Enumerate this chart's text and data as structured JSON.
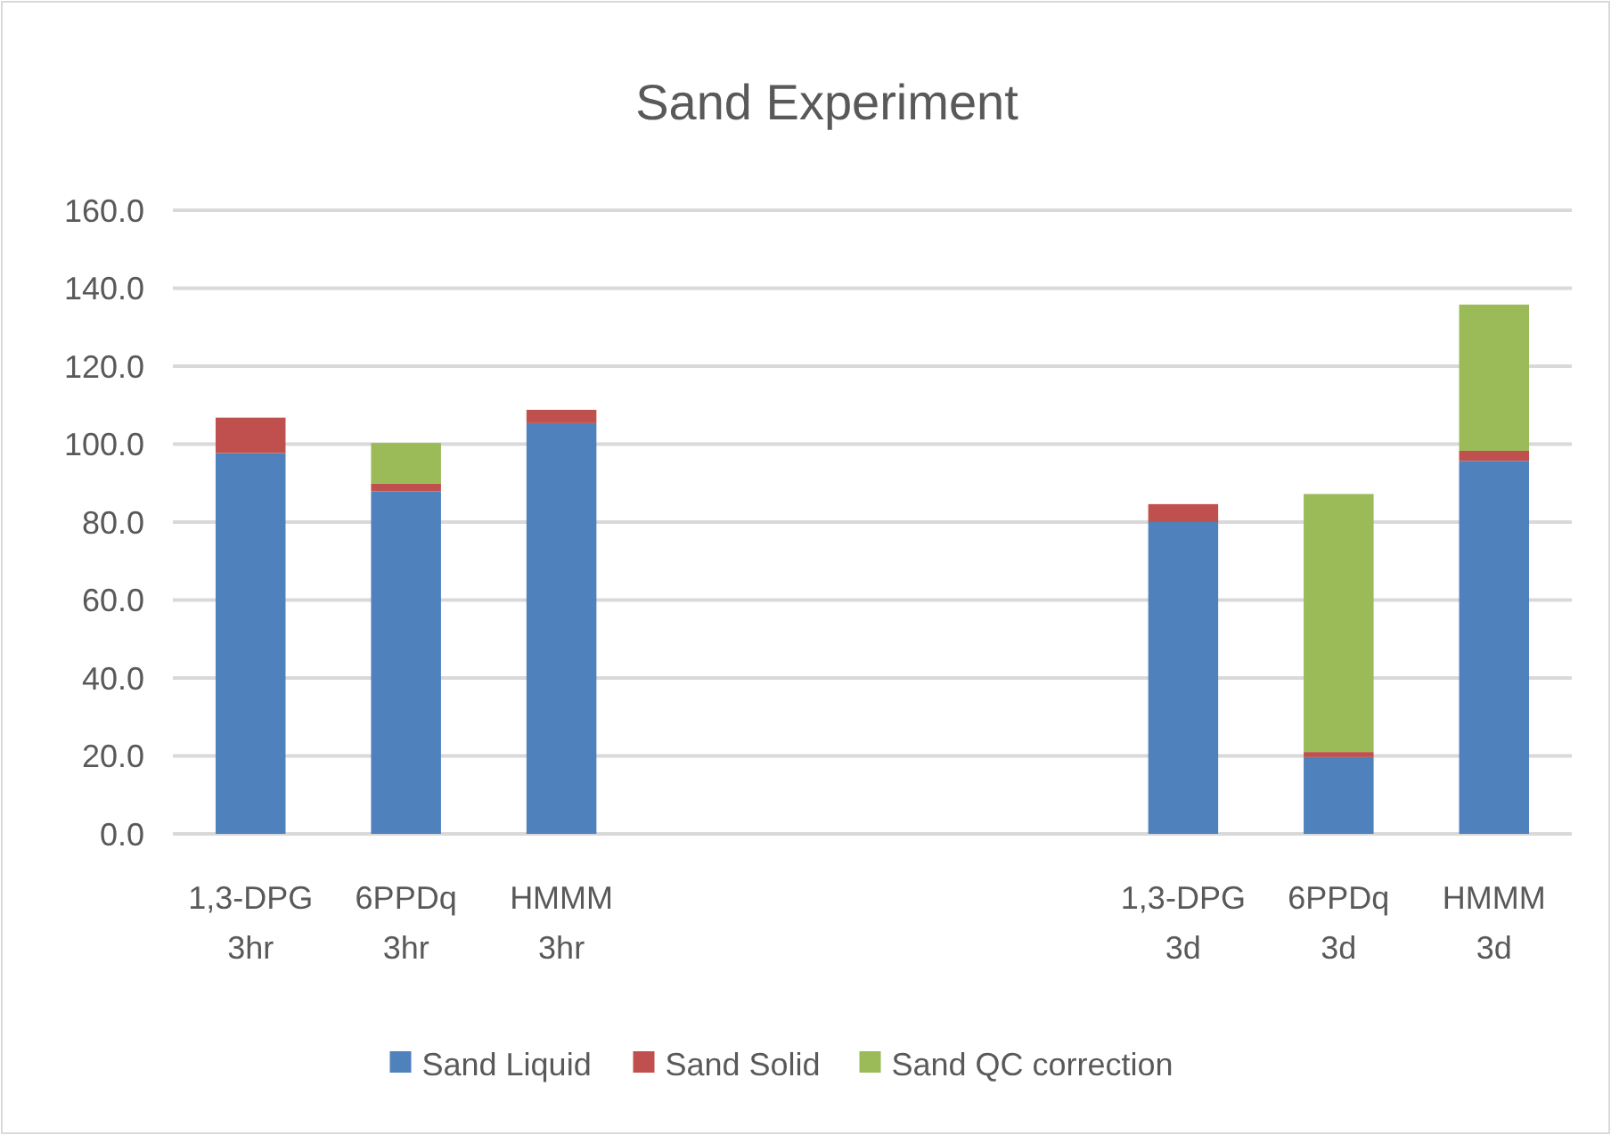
{
  "chart_data": {
    "type": "bar",
    "title": "Sand Experiment",
    "stacked": true,
    "legend": "bottom",
    "grid": "y",
    "categories": [
      "1,3-DPG 3hr",
      "6PPDq 3hr",
      "HMMM 3hr",
      null,
      null,
      null,
      "1,3-DPG 3d",
      "6PPDq 3d",
      "HMMM 3d"
    ],
    "series": [
      {
        "name": "Sand Liquid",
        "color": "#4f81bd",
        "values": [
          97.7,
          87.9,
          105.4,
          null,
          null,
          null,
          80.0,
          19.7,
          95.7
        ]
      },
      {
        "name": "Sand Solid",
        "color": "#c0504d",
        "values": [
          9.1,
          2.0,
          3.4,
          null,
          null,
          null,
          4.6,
          1.3,
          2.6
        ]
      },
      {
        "name": "Sand QC correction",
        "color": "#9bbb59",
        "values": [
          null,
          10.4,
          null,
          null,
          null,
          null,
          null,
          66.2,
          37.5
        ]
      }
    ],
    "ylim": [
      0,
      160
    ],
    "yticks": [
      {
        "value": 0,
        "label": "0.0"
      },
      {
        "value": 20,
        "label": "20.0"
      },
      {
        "value": 40,
        "label": "40.0"
      },
      {
        "value": 60,
        "label": "60.0"
      },
      {
        "value": 80,
        "label": "80.0"
      },
      {
        "value": 100,
        "label": "100.0"
      },
      {
        "value": 120,
        "label": "120.0"
      },
      {
        "value": 140,
        "label": "140.0"
      },
      {
        "value": 160,
        "label": "160.0"
      }
    ]
  }
}
